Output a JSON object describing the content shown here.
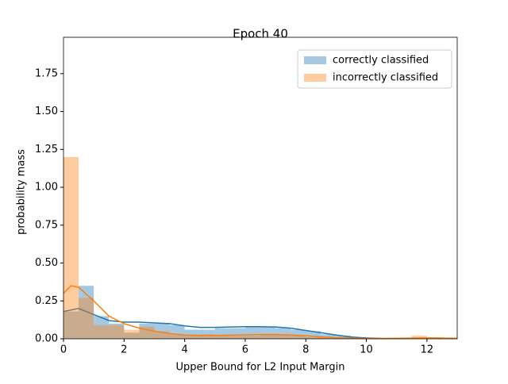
{
  "chart_data": {
    "type": "histogram",
    "title": "Epoch  40",
    "xlabel": "Upper Bound for L2 Input Margin",
    "ylabel": "probability mass",
    "xlim": [
      0,
      13
    ],
    "ylim": [
      0,
      1.99
    ],
    "xticks": [
      0,
      2,
      4,
      6,
      8,
      10,
      12
    ],
    "yticks": [
      {
        "value": 0,
        "label": "0.00"
      },
      {
        "value": 0.25,
        "label": "0.25"
      },
      {
        "value": 0.5,
        "label": "0.50"
      },
      {
        "value": 0.75,
        "label": "0.75"
      },
      {
        "value": 1,
        "label": "1.00"
      },
      {
        "value": 1.25,
        "label": "1.25"
      },
      {
        "value": 1.5,
        "label": "1.50"
      },
      {
        "value": 1.75,
        "label": "1.75"
      }
    ],
    "legend": "upper right",
    "bins": [
      0,
      0.5,
      1,
      1.5,
      2,
      2.5,
      3,
      3.5,
      4,
      4.5,
      5,
      5.5,
      6,
      6.5,
      7,
      7.5,
      8,
      8.5,
      9,
      9.5,
      10,
      10.5,
      11,
      11.5,
      12,
      12.5,
      13
    ],
    "series": [
      {
        "name": "correctly classified",
        "color": "#1f77b4",
        "values": [
          0.18,
          0.35,
          0.15,
          0.1,
          0.04,
          0.1,
          0.1,
          0.09,
          0.06,
          0.06,
          0.07,
          0.07,
          0.08,
          0.08,
          0.07,
          0.06,
          0.05,
          0.03,
          0.02,
          0.01,
          0,
          0,
          0,
          0,
          0,
          0
        ]
      },
      {
        "name": "incorrectly classified",
        "color": "#ff7f0e",
        "values": [
          1.2,
          0.27,
          0.09,
          0.09,
          0.06,
          0.08,
          0.05,
          0.03,
          0.02,
          0.03,
          0.02,
          0.02,
          0.02,
          0.03,
          0.03,
          0.02,
          0.01,
          0.01,
          0,
          0,
          0,
          0,
          0,
          0.02,
          0.01,
          0
        ]
      }
    ],
    "kde": [
      {
        "color": "#1f77b4",
        "x": [
          0,
          0.5,
          1,
          1.5,
          2,
          2.5,
          3,
          3.5,
          4,
          4.5,
          5,
          5.5,
          6,
          6.5,
          7,
          7.5,
          8,
          8.5,
          9,
          9.5,
          10,
          10.5
        ],
        "values": [
          0.18,
          0.2,
          0.16,
          0.12,
          0.11,
          0.11,
          0.105,
          0.1,
          0.085,
          0.075,
          0.075,
          0.078,
          0.08,
          0.08,
          0.078,
          0.07,
          0.055,
          0.04,
          0.025,
          0.012,
          0.005,
          0.002
        ]
      },
      {
        "color": "#ff7f0e",
        "x": [
          0,
          0.25,
          0.5,
          1,
          1.5,
          2,
          2.5,
          3,
          3.5,
          4,
          4.5,
          5,
          5.5,
          6,
          6.5,
          7,
          7.5,
          8,
          8.5,
          9,
          9.5,
          10,
          11,
          12,
          13
        ],
        "values": [
          0.3,
          0.35,
          0.34,
          0.25,
          0.15,
          0.1,
          0.07,
          0.05,
          0.035,
          0.025,
          0.022,
          0.022,
          0.024,
          0.026,
          0.028,
          0.028,
          0.025,
          0.02,
          0.013,
          0.008,
          0.004,
          0.002,
          0.003,
          0.006,
          0.003
        ]
      }
    ]
  }
}
